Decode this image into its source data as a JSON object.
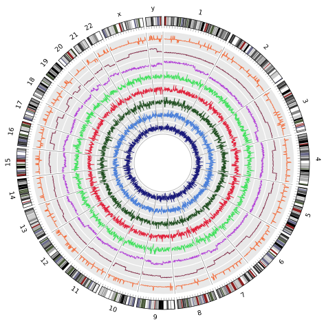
{
  "figure": {
    "background": "#ffffff",
    "ring_background": "#e8e8e8",
    "outline_color": "#000000",
    "divider_color": "#777777"
  },
  "chromosomes": [
    {
      "label": "1",
      "size": 249
    },
    {
      "label": "2",
      "size": 243
    },
    {
      "label": "3",
      "size": 198
    },
    {
      "label": "4",
      "size": 191
    },
    {
      "label": "5",
      "size": 181
    },
    {
      "label": "6",
      "size": 171
    },
    {
      "label": "7",
      "size": 159
    },
    {
      "label": "8",
      "size": 146
    },
    {
      "label": "9",
      "size": 141
    },
    {
      "label": "10",
      "size": 136
    },
    {
      "label": "11",
      "size": 135
    },
    {
      "label": "12",
      "size": 134
    },
    {
      "label": "13",
      "size": 115
    },
    {
      "label": "14",
      "size": 107
    },
    {
      "label": "15",
      "size": 102
    },
    {
      "label": "16",
      "size": 90
    },
    {
      "label": "17",
      "size": 81
    },
    {
      "label": "18",
      "size": 78
    },
    {
      "label": "19",
      "size": 59
    },
    {
      "label": "20",
      "size": 63
    },
    {
      "label": "21",
      "size": 48
    },
    {
      "label": "22",
      "size": 51
    },
    {
      "label": "x",
      "size": 155
    },
    {
      "label": "y",
      "size": 59
    }
  ],
  "tracks": [
    {
      "color": "#f26b3a",
      "style": "sparse"
    },
    {
      "color": "#7a1f3d",
      "style": "step"
    },
    {
      "color": "#b03ad6",
      "style": "step-noisy"
    },
    {
      "color": "#3ee05a",
      "style": "noisy"
    },
    {
      "color": "#e0203a",
      "style": "noisy"
    },
    {
      "color": "#1f4d1f",
      "style": "noisy"
    },
    {
      "color": "#4a7fd9",
      "style": "spiky"
    },
    {
      "color": "#1a1a7a",
      "style": "spiky"
    }
  ],
  "band_palette": [
    "#000000",
    "#333333",
    "#555555",
    "#888888",
    "#aaaaaa",
    "#cccccc",
    "#8b2020",
    "#4a5a3a",
    "#6a6a8a",
    "#ffffff"
  ]
}
